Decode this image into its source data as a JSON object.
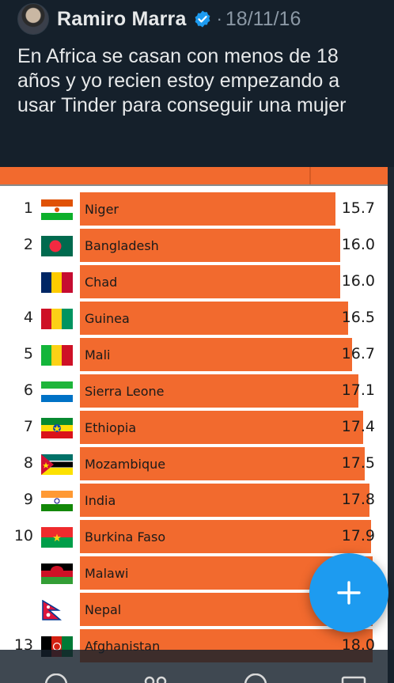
{
  "tweet": {
    "author_name": "Ramiro Marra",
    "separator": "·",
    "date": "18/11/16",
    "text": "En Africa se casan con menos de 18 años y yo recien estoy empezando a usar Tinder para conseguir una mujer"
  },
  "colors": {
    "bar": "#f26a2e",
    "verified": "#1d9bf0",
    "fab": "#1d9bf0",
    "background": "#15202b"
  },
  "chart_data": {
    "type": "bar",
    "orientation": "horizontal",
    "rows": [
      {
        "rank": "1",
        "country": "Niger",
        "value": 15.7,
        "label": "15.7",
        "flag": "niger-flag"
      },
      {
        "rank": "2",
        "country": "Bangladesh",
        "value": 16.0,
        "label": "16.0",
        "flag": "bangladesh-flag"
      },
      {
        "rank": "",
        "country": "Chad",
        "value": 16.0,
        "label": "16.0",
        "flag": "chad-flag"
      },
      {
        "rank": "4",
        "country": "Guinea",
        "value": 16.5,
        "label": "16.5",
        "flag": "guinea-flag"
      },
      {
        "rank": "5",
        "country": "Mali",
        "value": 16.7,
        "label": "16.7",
        "flag": "mali-flag"
      },
      {
        "rank": "6",
        "country": "Sierra Leone",
        "value": 17.1,
        "label": "17.1",
        "flag": "sierra-leone-flag"
      },
      {
        "rank": "7",
        "country": "Ethiopia",
        "value": 17.4,
        "label": "17.4",
        "flag": "ethiopia-flag"
      },
      {
        "rank": "8",
        "country": "Mozambique",
        "value": 17.5,
        "label": "17.5",
        "flag": "mozambique-flag"
      },
      {
        "rank": "9",
        "country": "India",
        "value": 17.8,
        "label": "17.8",
        "flag": "india-flag"
      },
      {
        "rank": "10",
        "country": "Burkina Faso",
        "value": 17.9,
        "label": "17.9",
        "flag": "burkina-faso-flag"
      },
      {
        "rank": "",
        "country": "Malawi",
        "value": 18.0,
        "label": "",
        "flag": "malawi-flag"
      },
      {
        "rank": "",
        "country": "Nepal",
        "value": 18.0,
        "label": "",
        "flag": "nepal-flag"
      },
      {
        "rank": "13",
        "country": "Afghanistan",
        "value": 18.0,
        "label": "18.0",
        "flag": "afghanistan-flag"
      }
    ]
  },
  "icons": {
    "avatar": "avatar",
    "verified": "verified-badge-icon",
    "fab": "plus-icon"
  }
}
